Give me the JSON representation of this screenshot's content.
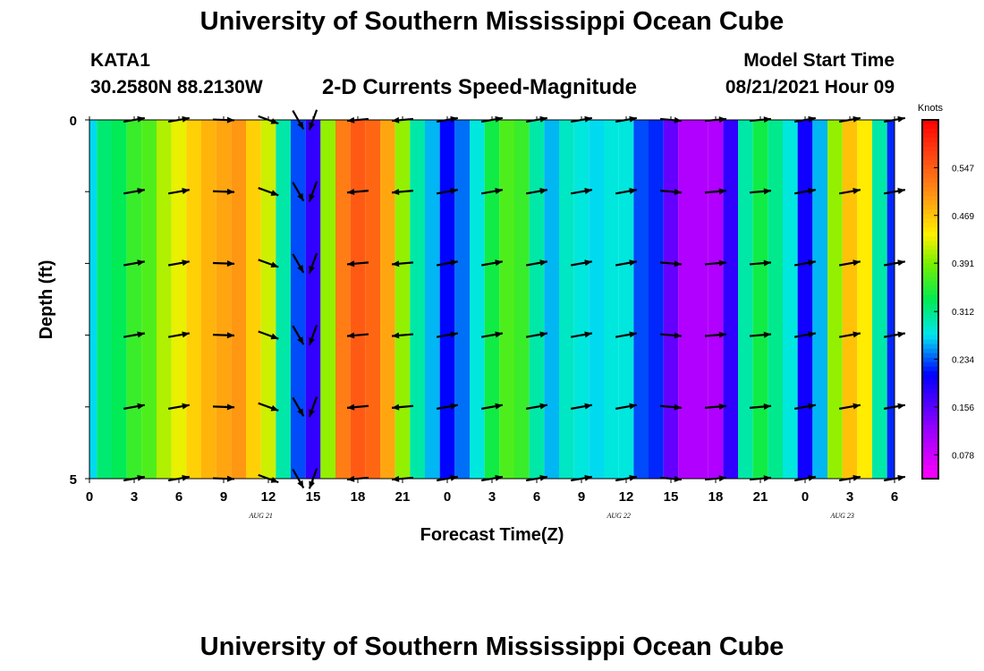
{
  "header": {
    "title": "University of Southern Mississippi Ocean Cube",
    "station_id": "KATA1",
    "station_coords": "30.2580N  88.2130W",
    "subtitle": "2-D Currents Speed-Magnitude",
    "model_label": "Model Start Time",
    "model_time": "08/21/2021 Hour 09"
  },
  "footer": {
    "title": "University of Southern Mississippi Ocean Cube"
  },
  "chart_data": {
    "type": "heatmap",
    "title": "2-D Currents Speed-Magnitude",
    "xlabel": "Forecast Time(Z)",
    "ylabel": "Depth (ft)",
    "x_hours_start": 0,
    "x_hours_end": 54,
    "x_tick_labels": [
      "0",
      "3",
      "6",
      "9",
      "12",
      "15",
      "18",
      "21",
      "0",
      "3",
      "6",
      "9",
      "12",
      "15",
      "18",
      "21",
      "0",
      "3",
      "6"
    ],
    "date_labels": [
      {
        "text": "AUG  21",
        "hour": 11.5
      },
      {
        "text": "AUG  22",
        "hour": 35.5
      },
      {
        "text": "AUG  23",
        "hour": 50.5
      }
    ],
    "y_tick_labels": [
      "0",
      "5"
    ],
    "ylim": [
      0,
      5
    ],
    "colorbar": {
      "unit": "Knots",
      "tick_labels": [
        "0.547",
        "0.469",
        "0.391",
        "0.312",
        "0.234",
        "0.156",
        "0.078"
      ],
      "tick_values": [
        0.547,
        0.469,
        0.391,
        0.312,
        0.234,
        0.156,
        0.078
      ],
      "min": 0.039,
      "max": 0.625
    },
    "speed_by_hour": [
      0.27,
      0.32,
      0.33,
      0.36,
      0.37,
      0.41,
      0.43,
      0.46,
      0.48,
      0.49,
      0.5,
      0.46,
      0.42,
      0.3,
      0.23,
      0.18,
      0.4,
      0.52,
      0.55,
      0.54,
      0.49,
      0.4,
      0.3,
      0.26,
      0.21,
      0.24,
      0.28,
      0.34,
      0.37,
      0.36,
      0.3,
      0.26,
      0.29,
      0.28,
      0.27,
      0.28,
      0.28,
      0.23,
      0.22,
      0.15,
      0.1,
      0.1,
      0.1,
      0.18,
      0.3,
      0.34,
      0.31,
      0.28,
      0.2,
      0.26,
      0.4,
      0.47,
      0.44,
      0.3,
      0.22
    ],
    "vector_levels_ft": [
      0,
      1,
      2,
      3,
      4,
      5
    ],
    "vector_hours": [
      3,
      6,
      9,
      12,
      14,
      15,
      18,
      21,
      24,
      27,
      30,
      33,
      36,
      39,
      42,
      45,
      48,
      51,
      54
    ],
    "vector_direction_deg": [
      80,
      80,
      92,
      110,
      150,
      200,
      265,
      265,
      80,
      80,
      80,
      80,
      80,
      95,
      85,
      85,
      80,
      80,
      80
    ]
  }
}
